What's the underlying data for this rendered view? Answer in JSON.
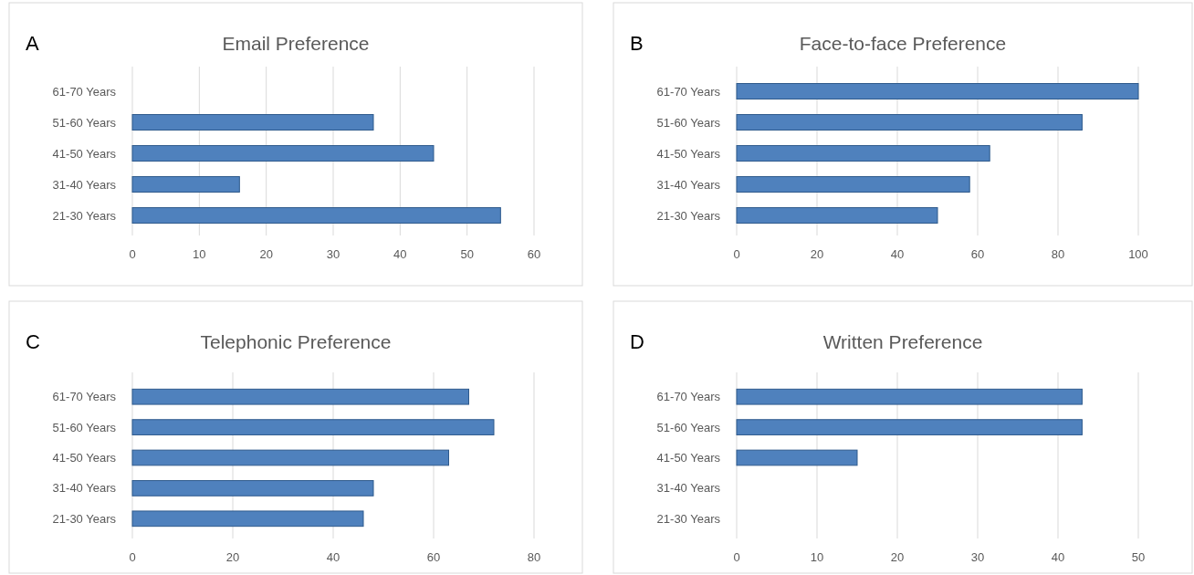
{
  "chart_data": [
    {
      "type": "bar",
      "orientation": "horizontal",
      "title": "Email Preference",
      "annotations": [
        "A"
      ],
      "categories": [
        "61-70 Years",
        "51-60 Years",
        "41-50 Years",
        "31-40 Years",
        "21-30 Years"
      ],
      "values": [
        0,
        36,
        45,
        16,
        55
      ],
      "color": "#4f81bd",
      "xlim": [
        0,
        60
      ],
      "xticks": [
        0,
        10,
        20,
        30,
        40,
        50,
        60
      ],
      "grid": "x"
    },
    {
      "type": "bar",
      "orientation": "horizontal",
      "title": "Face-to-face Preference",
      "annotations": [
        "B"
      ],
      "categories": [
        "61-70 Years",
        "51-60 Years",
        "41-50 Years",
        "31-40 Years",
        "21-30 Years"
      ],
      "values": [
        100,
        86,
        63,
        58,
        50
      ],
      "color": "#4f81bd",
      "xlim": [
        0,
        100
      ],
      "xticks": [
        0,
        20,
        40,
        60,
        80,
        100
      ],
      "grid": "x"
    },
    {
      "type": "bar",
      "orientation": "horizontal",
      "title": "Telephonic Preference",
      "annotations": [
        "C"
      ],
      "categories": [
        "61-70 Years",
        "51-60 Years",
        "41-50 Years",
        "31-40 Years",
        "21-30 Years"
      ],
      "values": [
        67,
        72,
        63,
        48,
        46
      ],
      "color": "#4f81bd",
      "xlim": [
        0,
        80
      ],
      "xticks": [
        0,
        20,
        40,
        60,
        80
      ],
      "grid": "x"
    },
    {
      "type": "bar",
      "orientation": "horizontal",
      "title": "Written Preference",
      "annotations": [
        "D"
      ],
      "categories": [
        "61-70 Years",
        "51-60 Years",
        "41-50 Years",
        "31-40 Years",
        "21-30 Years"
      ],
      "values": [
        43,
        43,
        15,
        0,
        0
      ],
      "color": "#4f81bd",
      "xlim": [
        0,
        50
      ],
      "xticks": [
        0,
        10,
        20,
        30,
        40,
        50
      ],
      "grid": "x"
    }
  ]
}
